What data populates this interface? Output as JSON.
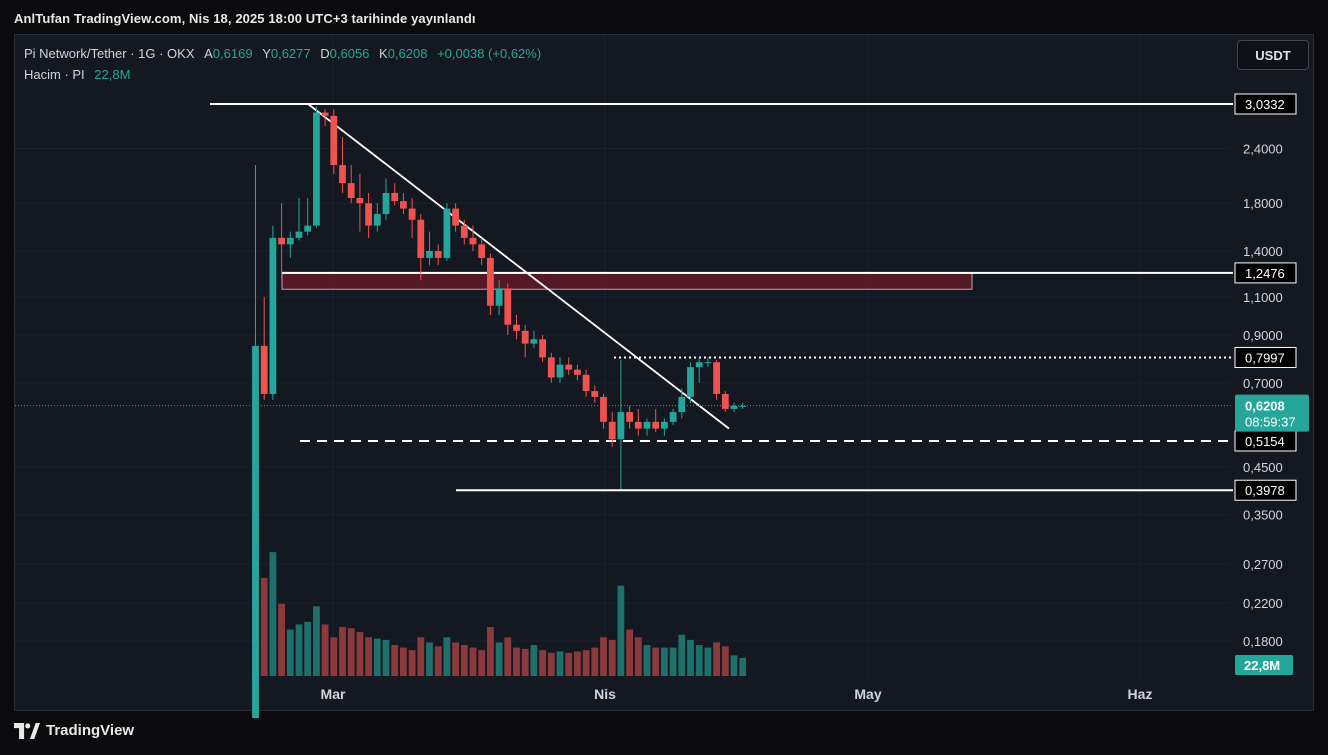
{
  "header": {
    "published": "AnlTufan TradingView.com, Nis 18, 2025 18:00 UTC+3 tarihinde yayınlandı"
  },
  "legend": {
    "title": "Pi Network/Tether · 1G · OKX",
    "open_label": "A",
    "open": "0,6169",
    "high_label": "Y",
    "high": "0,6277",
    "low_label": "D",
    "low": "0,6056",
    "close_label": "K",
    "close": "0,6208",
    "change": "+0,0038 (+0,62%)",
    "volume_label": "Hacim · PI",
    "volume": "22,8M"
  },
  "currency_button": "USDT",
  "footer": {
    "brand": "TradingView"
  },
  "colors": {
    "up": "#26a69a",
    "down": "#ef5350",
    "up_volume": "#1f6f6a",
    "down_volume": "#8a3a3d",
    "zone": "#6b1a28",
    "line": "#ffffff",
    "background": "#141821"
  },
  "chart_data": {
    "type": "candlestick",
    "scale": "log",
    "y_ticks": [
      "2,4000",
      "1,8000",
      "1,4000",
      "1,1000",
      "0,9000",
      "0,7000",
      "0,4500",
      "0,3500",
      "0,2700",
      "0,2200",
      "0,1800"
    ],
    "x_ticks": [
      "Mar",
      "Nis",
      "May",
      "Haz"
    ],
    "price_labels": [
      {
        "value": 3.0332,
        "text": "3,0332"
      },
      {
        "value": 1.2476,
        "text": "1,2476"
      },
      {
        "value": 0.7997,
        "text": "0,7997"
      },
      {
        "value": 0.5154,
        "text": "0,5154"
      },
      {
        "value": 0.3978,
        "text": "0,3978"
      }
    ],
    "last_price": {
      "value": 0.6208,
      "text": "0,6208",
      "countdown": "08:59:37"
    },
    "last_volume": "22,8M",
    "start_date": "2025-02-20",
    "candles": [
      [
        0.12,
        2.2,
        0.12,
        0.85
      ],
      [
        0.85,
        1.1,
        0.64,
        0.66
      ],
      [
        0.66,
        1.6,
        0.64,
        1.5
      ],
      [
        1.5,
        1.8,
        1.2,
        1.45
      ],
      [
        1.45,
        1.55,
        1.35,
        1.5
      ],
      [
        1.5,
        1.85,
        1.48,
        1.55
      ],
      [
        1.55,
        1.85,
        1.52,
        1.6
      ],
      [
        1.6,
        3.0,
        1.58,
        2.9
      ],
      [
        2.9,
        2.95,
        2.7,
        2.85
      ],
      [
        2.85,
        2.95,
        2.1,
        2.2
      ],
      [
        2.2,
        2.55,
        1.9,
        2.0
      ],
      [
        2.0,
        2.2,
        1.8,
        1.85
      ],
      [
        1.85,
        2.1,
        1.55,
        1.8
      ],
      [
        1.8,
        1.9,
        1.5,
        1.6
      ],
      [
        1.6,
        1.8,
        1.55,
        1.7
      ],
      [
        1.7,
        2.05,
        1.65,
        1.9
      ],
      [
        1.9,
        2.0,
        1.78,
        1.82
      ],
      [
        1.82,
        1.9,
        1.7,
        1.75
      ],
      [
        1.75,
        1.85,
        1.5,
        1.65
      ],
      [
        1.65,
        1.7,
        1.2,
        1.35
      ],
      [
        1.35,
        1.55,
        1.3,
        1.4
      ],
      [
        1.4,
        1.45,
        1.3,
        1.35
      ],
      [
        1.35,
        1.8,
        1.33,
        1.75
      ],
      [
        1.75,
        1.8,
        1.55,
        1.6
      ],
      [
        1.6,
        1.65,
        1.45,
        1.5
      ],
      [
        1.5,
        1.6,
        1.4,
        1.45
      ],
      [
        1.45,
        1.5,
        1.3,
        1.35
      ],
      [
        1.35,
        1.38,
        1.0,
        1.05
      ],
      [
        1.05,
        1.2,
        1.0,
        1.15
      ],
      [
        1.15,
        1.18,
        0.9,
        0.95
      ],
      [
        0.95,
        1.0,
        0.88,
        0.92
      ],
      [
        0.92,
        0.95,
        0.8,
        0.86
      ],
      [
        0.86,
        0.92,
        0.84,
        0.88
      ],
      [
        0.88,
        0.9,
        0.78,
        0.8
      ],
      [
        0.8,
        0.82,
        0.7,
        0.72
      ],
      [
        0.72,
        0.8,
        0.7,
        0.77
      ],
      [
        0.77,
        0.8,
        0.73,
        0.75
      ],
      [
        0.75,
        0.77,
        0.71,
        0.73
      ],
      [
        0.73,
        0.75,
        0.65,
        0.67
      ],
      [
        0.67,
        0.69,
        0.63,
        0.65
      ],
      [
        0.65,
        0.66,
        0.55,
        0.57
      ],
      [
        0.57,
        0.6,
        0.5,
        0.52
      ],
      [
        0.52,
        0.79,
        0.4,
        0.6
      ],
      [
        0.6,
        0.62,
        0.55,
        0.57
      ],
      [
        0.57,
        0.61,
        0.53,
        0.55
      ],
      [
        0.55,
        0.58,
        0.53,
        0.57
      ],
      [
        0.57,
        0.61,
        0.54,
        0.55
      ],
      [
        0.55,
        0.58,
        0.53,
        0.57
      ],
      [
        0.57,
        0.61,
        0.56,
        0.6
      ],
      [
        0.6,
        0.68,
        0.58,
        0.65
      ],
      [
        0.65,
        0.78,
        0.63,
        0.76
      ],
      [
        0.76,
        0.8,
        0.7,
        0.78
      ],
      [
        0.78,
        0.8,
        0.76,
        0.78
      ],
      [
        0.78,
        0.79,
        0.64,
        0.66
      ],
      [
        0.66,
        0.67,
        0.6,
        0.61
      ],
      [
        0.61,
        0.63,
        0.6,
        0.62
      ],
      [
        0.62,
        0.63,
        0.61,
        0.62
      ]
    ],
    "volume": [
      620,
      380,
      480,
      280,
      180,
      200,
      210,
      270,
      200,
      150,
      190,
      185,
      170,
      150,
      145,
      140,
      120,
      110,
      100,
      150,
      130,
      115,
      150,
      130,
      120,
      110,
      100,
      190,
      130,
      150,
      110,
      105,
      120,
      100,
      90,
      95,
      90,
      95,
      100,
      110,
      150,
      140,
      350,
      180,
      150,
      120,
      110,
      110,
      110,
      160,
      140,
      120,
      110,
      130,
      115,
      80,
      70
    ]
  }
}
